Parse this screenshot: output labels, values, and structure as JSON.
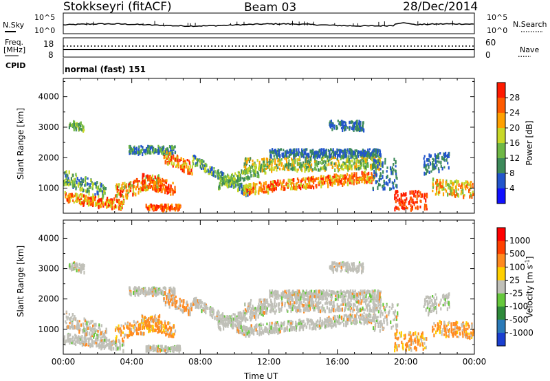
{
  "header": {
    "title": "Stokkseyri (fitACF)",
    "beam": "Beam 03",
    "date": "28/Dec/2014"
  },
  "panels": {
    "nsky": {
      "label": "N.Sky",
      "left_ticks": [
        "10^5",
        "10^0"
      ],
      "right_ticks": [
        "10^5",
        "10^0"
      ],
      "right_label": "N.Search"
    },
    "freq": {
      "label_line1": "Freq.",
      "label_line2": "[MHz]",
      "left_ticks": [
        "18",
        "8"
      ],
      "right_ticks": [
        "60",
        "0"
      ],
      "right_label": "Nave"
    },
    "cpid": {
      "label": "CPID",
      "text": "normal (fast) 151"
    }
  },
  "chart_data": [
    {
      "type": "heatmap",
      "quantity": "power",
      "ylabel": "Slant Range [km]",
      "yticks": [
        1000,
        2000,
        3000,
        4000
      ],
      "ylim": [
        180,
        4600
      ],
      "xticks": [
        "00:00",
        "04:00",
        "08:00",
        "12:00",
        "16:00",
        "20:00",
        "00:00"
      ],
      "colorbar": {
        "label": "Power [dB]",
        "ticks": [
          "4",
          "8",
          "12",
          "16",
          "20",
          "24",
          "28"
        ],
        "colors": [
          "#1010ff",
          "#2255cc",
          "#3d8a5a",
          "#6fb845",
          "#c8d828",
          "#ffa000",
          "#ff5a00",
          "#ff1a00"
        ]
      }
    },
    {
      "type": "heatmap",
      "quantity": "velocity",
      "ylabel": "Slant Range [km]",
      "yticks": [
        1000,
        2000,
        3000,
        4000
      ],
      "ylim": [
        180,
        4600
      ],
      "xticks": [
        "00:00",
        "04:00",
        "08:00",
        "12:00",
        "16:00",
        "20:00",
        "00:00"
      ],
      "xlabel": "Time UT",
      "colorbar": {
        "label": "Velocity [m s",
        "label_sup": "-1",
        "label_end": "]",
        "ticks": [
          "1000",
          "500",
          "100",
          "25",
          "-25",
          "-100",
          "-500",
          "-1000"
        ],
        "colors": [
          "#1a3fd0",
          "#2a7ab8",
          "#2e8a3a",
          "#66c83c",
          "#c0c0b8",
          "#ffd000",
          "#ff8a20",
          "#ff4000",
          "#ff0000"
        ]
      }
    }
  ]
}
